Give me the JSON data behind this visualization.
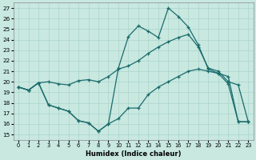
{
  "xlabel": "Humidex (Indice chaleur)",
  "bg_color": "#c8e8e0",
  "grid_color": "#aad4cc",
  "line_color": "#1a6b6b",
  "xlim": [
    -0.5,
    23.5
  ],
  "ylim": [
    14.5,
    27.5
  ],
  "yticks": [
    15,
    16,
    17,
    18,
    19,
    20,
    21,
    22,
    23,
    24,
    25,
    26,
    27
  ],
  "xticks": [
    0,
    1,
    2,
    3,
    4,
    5,
    6,
    7,
    8,
    9,
    10,
    11,
    12,
    13,
    14,
    15,
    16,
    17,
    18,
    19,
    20,
    21,
    22,
    23
  ],
  "line1_x": [
    0,
    1,
    2,
    3,
    4,
    5,
    6,
    7,
    8,
    9,
    10,
    11,
    12,
    13,
    14,
    15,
    16,
    17,
    18,
    19,
    20,
    21,
    22,
    23
  ],
  "line1_y": [
    19.5,
    19.2,
    19.9,
    20.0,
    19.8,
    19.7,
    20.1,
    20.2,
    20.0,
    20.5,
    21.2,
    21.5,
    22.0,
    22.7,
    23.3,
    23.8,
    24.2,
    24.5,
    23.3,
    21.3,
    21.0,
    20.0,
    19.7,
    16.2
  ],
  "line2_x": [
    0,
    1,
    2,
    3,
    4,
    5,
    6,
    7,
    8,
    9,
    10,
    11,
    12,
    13,
    14,
    15,
    16,
    17,
    18,
    19,
    20,
    21,
    22,
    23
  ],
  "line2_y": [
    19.5,
    19.2,
    19.9,
    17.8,
    17.5,
    17.2,
    16.3,
    16.1,
    15.3,
    16.0,
    16.5,
    17.5,
    17.5,
    18.8,
    19.5,
    20.0,
    20.5,
    21.0,
    21.2,
    21.0,
    20.8,
    20.5,
    16.2,
    16.2
  ],
  "line3_x": [
    0,
    1,
    2,
    3,
    4,
    5,
    6,
    7,
    8,
    9,
    10,
    11,
    12,
    13,
    14,
    15,
    16,
    17,
    18,
    19,
    20,
    21,
    22,
    23
  ],
  "line3_y": [
    19.5,
    19.2,
    19.9,
    17.8,
    17.5,
    17.2,
    16.3,
    16.1,
    15.3,
    16.0,
    21.3,
    24.3,
    25.3,
    24.8,
    24.2,
    27.0,
    26.2,
    25.2,
    23.5,
    21.2,
    20.8,
    19.8,
    16.2,
    16.2
  ]
}
